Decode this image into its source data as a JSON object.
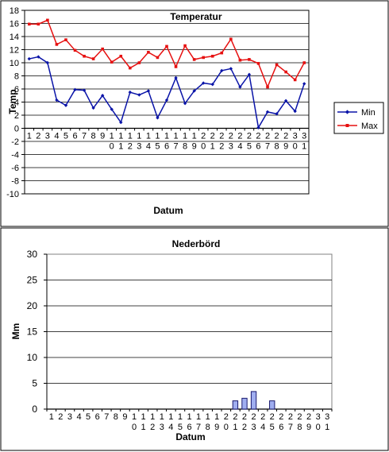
{
  "chart_data": [
    {
      "type": "line",
      "title": "Temperatur",
      "xlabel": "Datum",
      "ylabel": "Temp",
      "ylim": [
        -10,
        18
      ],
      "ytick_step": 2,
      "grid": true,
      "legend_position": "right",
      "categories": [
        "1",
        "2",
        "3",
        "4",
        "5",
        "6",
        "7",
        "8",
        "9",
        "10",
        "11",
        "12",
        "13",
        "14",
        "15",
        "16",
        "17",
        "18",
        "19",
        "20",
        "21",
        "22",
        "23",
        "24",
        "25",
        "26",
        "27",
        "28",
        "29",
        "30",
        "31"
      ],
      "series": [
        {
          "name": "Min",
          "color": "#0a14a8",
          "marker": "diamond",
          "values": [
            10.6,
            10.9,
            10.0,
            4.3,
            3.5,
            5.9,
            5.8,
            3.1,
            5.0,
            2.9,
            0.9,
            5.5,
            5.1,
            5.7,
            1.6,
            4.3,
            7.7,
            3.8,
            5.7,
            6.9,
            6.7,
            8.8,
            9.1,
            6.3,
            8.2,
            0.1,
            2.5,
            2.2,
            4.2,
            2.6,
            6.8
          ]
        },
        {
          "name": "Max",
          "color": "#e61010",
          "marker": "square",
          "values": [
            15.9,
            15.9,
            16.5,
            12.8,
            13.5,
            11.9,
            11.0,
            10.6,
            12.1,
            10.1,
            11.0,
            9.2,
            10.0,
            11.6,
            10.8,
            12.5,
            9.4,
            12.6,
            10.5,
            10.8,
            11.0,
            11.5,
            13.6,
            10.4,
            10.5,
            9.9,
            6.3,
            9.7,
            8.6,
            7.4,
            10.0
          ]
        }
      ]
    },
    {
      "type": "bar",
      "title": "Nederbörd",
      "xlabel": "Datum",
      "ylabel": "Mm",
      "ylim": [
        0,
        30
      ],
      "ytick_step": 5,
      "grid": true,
      "bar_fill": "#a0aef0",
      "bar_stroke": "#1a1a6e",
      "categories": [
        "1",
        "2",
        "3",
        "4",
        "5",
        "6",
        "7",
        "8",
        "9",
        "10",
        "11",
        "12",
        "13",
        "14",
        "15",
        "16",
        "17",
        "18",
        "19",
        "20",
        "21",
        "22",
        "23",
        "24",
        "25",
        "26",
        "27",
        "28",
        "29",
        "30",
        "31"
      ],
      "series": [
        {
          "values": [
            0,
            0,
            0,
            0,
            0,
            0,
            0,
            0,
            0,
            0,
            0,
            0,
            0,
            0,
            0,
            0,
            0,
            0,
            0,
            0,
            1.6,
            2.1,
            3.4,
            0,
            1.6,
            0,
            0,
            0,
            0,
            0,
            0
          ]
        }
      ]
    }
  ]
}
